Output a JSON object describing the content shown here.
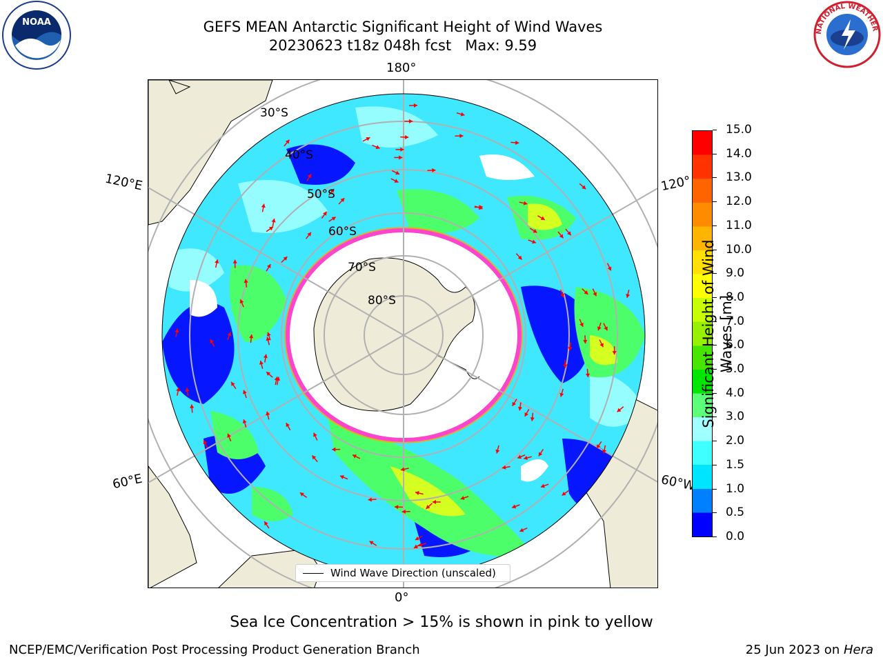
{
  "title": {
    "line1": "GEFS MEAN Antarctic Significant Height of Wind Waves",
    "line2": "20230623 t18z 048h fcst   Max: 9.59"
  },
  "logos": {
    "left": {
      "name": "noaa-logo",
      "text": "NOAA"
    },
    "right": {
      "name": "nws-logo",
      "text": "NATIONAL WEATHER SERVICE"
    }
  },
  "map": {
    "projection": "south-polar-stereographic",
    "longitude_labels": {
      "top": "180°",
      "bottom": "0°",
      "upper_left": "120°E",
      "lower_left": "60°E",
      "upper_right": "120°",
      "lower_right": "60°W"
    },
    "latitude_labels": [
      "30°S",
      "40°S",
      "50°S",
      "60°S",
      "70°S",
      "80°S"
    ]
  },
  "colorbar": {
    "label": "Significant Height of Wind Waves [m]",
    "ticks": [
      "0.0",
      "0.5",
      "1.0",
      "1.5",
      "2.0",
      "3.0",
      "4.0",
      "5.0",
      "6.0",
      "7.0",
      "8.0",
      "9.0",
      "10.0",
      "11.0",
      "12.0",
      "13.0",
      "14.0",
      "15.0"
    ],
    "colors": [
      "#0000ff",
      "#0080ff",
      "#00e5ff",
      "#40ffff",
      "#a0ffff",
      "#5cff78",
      "#00e600",
      "#46e600",
      "#96f000",
      "#c8ff00",
      "#ffff00",
      "#ffe000",
      "#ffb400",
      "#ff8c00",
      "#ff6400",
      "#ff3200",
      "#ff0000"
    ]
  },
  "legend": {
    "label": "Wind Wave Direction (unscaled)"
  },
  "ice_note": "Sea Ice Concentration > 15% is shown in pink to yellow",
  "footer": {
    "left": "NCEP/EMC/Verification Post Processing Product Generation Branch",
    "right_date": "25 Jun 2023 on ",
    "right_host": "Hera"
  },
  "colors": {
    "land": "#eeecd8",
    "ice_edge": "#ff44cc",
    "arrow": "#ff0000",
    "grid": "#b0b0b0"
  }
}
